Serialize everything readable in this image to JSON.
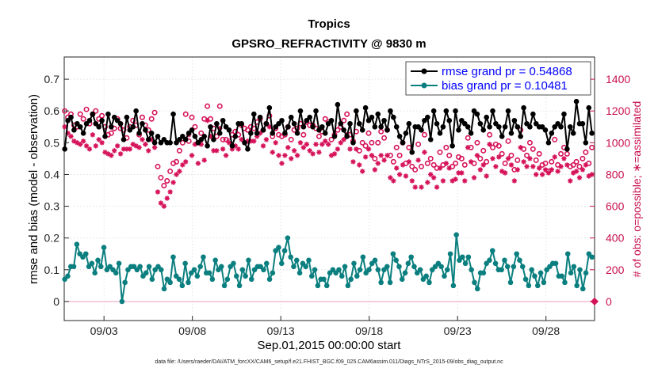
{
  "chart_data": {
    "type": "line",
    "title": "Tropics",
    "subtitle": "GPSRO_REFRACTIVITY @ 9830 m",
    "xlabel": "Sep.01,2015 00:00:00 start",
    "ylabel": "rmse and bias (model - observation)",
    "ylabel_right": "# of obs: o=possible; ∗=assimilated",
    "footnote": "data file: /Users/raeder/DAI/ATM_forcXX/CAM6_setup/f.e21.FHIST_BGC.f09_025.CAM6assim.011/Diags_NTrS_2015-09/obs_diag_output.nc",
    "xlim": [
      0.75,
      30.75
    ],
    "ylim": [
      -0.06,
      0.77
    ],
    "ylim_right": [
      -120,
      1540
    ],
    "x_tick_values": [
      3,
      8,
      13,
      18,
      23,
      28
    ],
    "x_tick_labels": [
      "09/03",
      "09/08",
      "09/13",
      "09/18",
      "09/23",
      "09/28"
    ],
    "y_ticks": [
      0,
      0.1,
      0.2,
      0.3,
      0.4,
      0.5,
      0.6,
      0.7
    ],
    "y_tick_labels": [
      "0",
      "0.1",
      "0.2",
      "0.3",
      "0.4",
      "0.5",
      "0.6",
      "0.7"
    ],
    "y_ticks_right": [
      0,
      200,
      400,
      600,
      800,
      1000,
      1200,
      1400
    ],
    "y_tick_labels_right": [
      "0",
      "200",
      "400",
      "600",
      "800",
      "1000",
      "1200",
      "1400"
    ],
    "grid": true,
    "legend_position": "top-right",
    "legend": [
      "rmse grand pr = 0.54868",
      "bias grand pr = 0.10481"
    ],
    "colors": {
      "rmse": "#000000",
      "bias": "#0b7f7f",
      "counts": "#d6135a"
    },
    "series": [
      {
        "name": "rmse grand pr = 0.54868",
        "axis": "left",
        "values": [
          0.48,
          0.57,
          0.58,
          0.54,
          0.56,
          0.55,
          0.53,
          0.56,
          0.57,
          0.59,
          0.56,
          0.55,
          0.57,
          0.52,
          0.59,
          0.55,
          0.58,
          0.57,
          0.56,
          0.51,
          0.58,
          0.54,
          0.55,
          0.6,
          0.53,
          0.56,
          0.54,
          0.51,
          0.53,
          0.5,
          0.52,
          0.5,
          0.51,
          0.5,
          0.5,
          0.59,
          0.5,
          0.51,
          0.52,
          0.51,
          0.53,
          0.54,
          0.52,
          0.5,
          0.51,
          0.52,
          0.49,
          0.55,
          0.51,
          0.56,
          0.53,
          0.57,
          0.55,
          0.54,
          0.49,
          0.52,
          0.56,
          0.56,
          0.5,
          0.48,
          0.53,
          0.59,
          0.53,
          0.58,
          0.54,
          0.56,
          0.61,
          0.53,
          0.55,
          0.56,
          0.57,
          0.53,
          0.55,
          0.58,
          0.56,
          0.53,
          0.6,
          0.55,
          0.57,
          0.58,
          0.55,
          0.6,
          0.54,
          0.55,
          0.53,
          0.56,
          0.57,
          0.52,
          0.62,
          0.56,
          0.54,
          0.52,
          0.56,
          0.5,
          0.6,
          0.56,
          0.54,
          0.61,
          0.57,
          0.58,
          0.55,
          0.59,
          0.55,
          0.57,
          0.54,
          0.6,
          0.58,
          0.55,
          0.52,
          0.5,
          0.53,
          0.56,
          0.47,
          0.55,
          0.55,
          0.54,
          0.57,
          0.58,
          0.51,
          0.6,
          0.56,
          0.53,
          0.55,
          0.6,
          0.57,
          0.49,
          0.6,
          0.54,
          0.57,
          0.56,
          0.55,
          0.53,
          0.6,
          0.59,
          0.56,
          0.54,
          0.58,
          0.55,
          0.6,
          0.56,
          0.55,
          0.52,
          0.55,
          0.6,
          0.53,
          0.57,
          0.55,
          0.52,
          0.61,
          0.56,
          0.55,
          0.59,
          0.56,
          0.55,
          0.55,
          0.54,
          0.5,
          0.53,
          0.55,
          0.56,
          0.55,
          0.59,
          0.48,
          0.55,
          0.53,
          0.63,
          0.56,
          0.56,
          0.5,
          0.61,
          0.53
        ]
      },
      {
        "name": "bias grand pr = 0.10481",
        "axis": "left",
        "values": [
          0.07,
          0.08,
          0.11,
          0.11,
          0.18,
          0.15,
          0.14,
          0.15,
          0.11,
          0.12,
          0.09,
          0.13,
          0.11,
          0.17,
          0.1,
          0.11,
          0.1,
          0.09,
          0.12,
          0.0,
          0.06,
          0.1,
          0.11,
          0.11,
          0.1,
          0.11,
          0.08,
          0.09,
          0.11,
          0.07,
          0.1,
          0.11,
          0.1,
          0.04,
          0.07,
          0.06,
          0.14,
          0.08,
          0.07,
          0.05,
          0.12,
          0.06,
          0.09,
          0.1,
          0.08,
          0.11,
          0.14,
          0.09,
          0.09,
          0.07,
          0.13,
          0.1,
          0.11,
          0.05,
          0.07,
          0.11,
          0.12,
          0.08,
          0.05,
          0.1,
          0.08,
          0.13,
          0.07,
          0.1,
          0.11,
          0.11,
          0.1,
          0.12,
          0.07,
          0.09,
          0.16,
          0.17,
          0.12,
          0.16,
          0.2,
          0.14,
          0.11,
          0.13,
          0.09,
          0.12,
          0.11,
          0.13,
          0.08,
          0.1,
          0.05,
          0.07,
          0.07,
          0.05,
          0.09,
          0.1,
          0.09,
          0.1,
          0.08,
          0.11,
          0.05,
          0.07,
          0.12,
          0.08,
          0.1,
          0.14,
          0.09,
          0.1,
          0.12,
          0.13,
          0.1,
          0.06,
          0.1,
          0.11,
          0.06,
          0.15,
          0.13,
          0.11,
          0.07,
          0.09,
          0.12,
          0.14,
          0.11,
          0.09,
          0.1,
          0.07,
          0.08,
          0.06,
          0.1,
          0.11,
          0.12,
          0.11,
          0.08,
          0.1,
          0.15,
          0.05,
          0.21,
          0.13,
          0.14,
          0.12,
          0.14,
          0.1,
          0.06,
          0.04,
          0.09,
          0.09,
          0.12,
          0.13,
          0.16,
          0.12,
          0.1,
          0.1,
          0.13,
          0.11,
          0.06,
          0.11,
          0.15,
          0.13,
          0.11,
          0.07,
          0.05,
          0.1,
          0.08,
          0.05,
          0.09,
          0.06,
          0.1,
          0.11,
          0.12,
          0.12,
          0.08,
          0.08,
          0.06,
          0.15,
          0.09,
          0.11,
          0.05,
          0.1,
          0.04,
          0.09,
          0.15,
          0.14
        ]
      },
      {
        "name": "possible (o)",
        "axis": "right",
        "values": [
          1200,
          1160,
          1180,
          1110,
          1100,
          1180,
          1150,
          1210,
          1120,
          1180,
          1200,
          1150,
          1170,
          1100,
          1050,
          1060,
          1090,
          1150,
          1090,
          1080,
          1030,
          1100,
          1140,
          1110,
          1050,
          1160,
          1110,
          1080,
          1150,
          1190,
          850,
          780,
          730,
          760,
          820,
          870,
          880,
          950,
          1000,
          1180,
          1010,
          1160,
          1100,
          1000,
          1060,
          1150,
          1230,
          1150,
          1090,
          1040,
          1230,
          1020,
          1020,
          1010,
          1050,
          1070,
          1050,
          1110,
          1090,
          1080,
          1100,
          1090,
          1130,
          1150,
          1080,
          1120,
          1170,
          1040,
          1090,
          1050,
          1040,
          1050,
          1100,
          1020,
          1080,
          1090,
          1120,
          1050,
          1130,
          1110,
          1110,
          1090,
          1040,
          1070,
          1150,
          1130,
          1020,
          1050,
          1080,
          1100,
          1140,
          1180,
          1050,
          1010,
          1070,
          950,
          1000,
          980,
          1060,
          1000,
          900,
          1000,
          1070,
          1030,
          1080,
          920,
          880,
          970,
          920,
          1000,
          870,
          970,
          850,
          830,
          990,
          850,
          1050,
          870,
          900,
          860,
          840,
          940,
          860,
          970,
          920,
          850,
          870,
          910,
          900,
          860,
          1030,
          970,
          870,
          1000,
          900,
          950,
          880,
          1050,
          970,
          990,
          980,
          930,
          870,
          1010,
          920,
          830,
          890,
          1080,
          960,
          920,
          1000,
          960,
          890,
          930,
          860,
          870,
          820,
          880,
          1020,
          860,
          930,
          970,
          930,
          850,
          860,
          880,
          850,
          900,
          940,
          870,
          970
        ]
      },
      {
        "name": "assimilated (*)",
        "axis": "right",
        "values": [
          1100,
          1060,
          1040,
          1010,
          1000,
          990,
          1010,
          980,
          960,
          1050,
          980,
          1020,
          1000,
          940,
          930,
          920,
          950,
          980,
          930,
          960,
          960,
          960,
          990,
          980,
          970,
          1020,
          990,
          950,
          1020,
          970,
          690,
          620,
          600,
          650,
          690,
          750,
          800,
          820,
          860,
          880,
          1050,
          920,
          990,
          870,
          990,
          890,
          1140,
          1040,
          950,
          950,
          1090,
          960,
          920,
          1000,
          960,
          980,
          960,
          1020,
          1000,
          1010,
          1010,
          1010,
          1040,
          1060,
          980,
          1020,
          1100,
          940,
          1000,
          920,
          870,
          920,
          970,
          900,
          950,
          920,
          1000,
          970,
          990,
          950,
          930,
          990,
          940,
          990,
          1010,
          990,
          920,
          930,
          960,
          1000,
          1020,
          1050,
          960,
          880,
          960,
          860,
          820,
          910,
          960,
          920,
          830,
          870,
          920,
          890,
          920,
          780,
          760,
          840,
          800,
          860,
          790,
          880,
          760,
          720,
          890,
          720,
          940,
          750,
          800,
          780,
          720,
          840,
          760,
          870,
          840,
          760,
          770,
          810,
          810,
          760,
          970,
          880,
          780,
          920,
          830,
          860,
          790,
          990,
          900,
          850,
          910,
          820,
          810,
          900,
          860,
          760,
          830,
          970,
          880,
          850,
          900,
          850,
          800,
          840,
          800,
          830,
          810,
          830,
          910,
          820,
          850,
          900,
          860,
          760,
          810,
          820,
          780,
          830,
          860,
          790,
          800
        ]
      }
    ],
    "zero_count_marker": {
      "x": 30.75,
      "y": 0,
      "shape": "diamond"
    }
  }
}
